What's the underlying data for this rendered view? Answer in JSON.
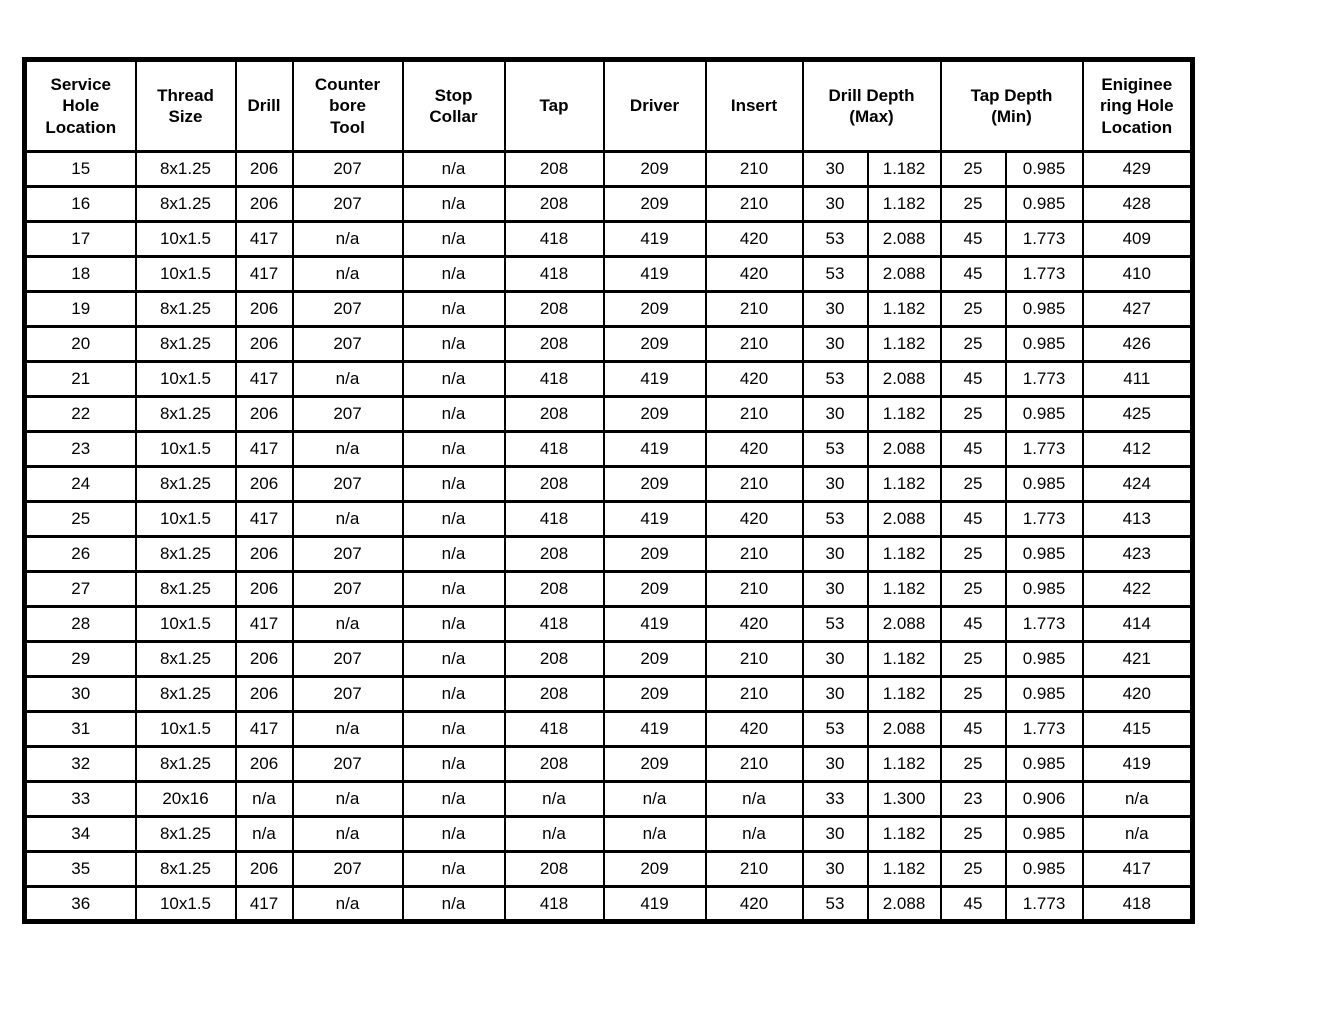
{
  "table": {
    "columns": [
      {
        "label": "Service\nHole\nLocation"
      },
      {
        "label": "Thread\nSize"
      },
      {
        "label": "Drill"
      },
      {
        "label": "Counter\nbore\nTool"
      },
      {
        "label": "Stop\nCollar"
      },
      {
        "label": "Tap"
      },
      {
        "label": "Driver"
      },
      {
        "label": "Insert"
      },
      {
        "label": "Drill Depth\n(Max)"
      },
      {
        "label": "Tap Depth\n(Min)"
      },
      {
        "label": "Eniginee\nring Hole\nLocation"
      }
    ],
    "rows": [
      [
        "15",
        "8x1.25",
        "206",
        "207",
        "n/a",
        "208",
        "209",
        "210",
        "30",
        "1.182",
        "25",
        "0.985",
        "429"
      ],
      [
        "16",
        "8x1.25",
        "206",
        "207",
        "n/a",
        "208",
        "209",
        "210",
        "30",
        "1.182",
        "25",
        "0.985",
        "428"
      ],
      [
        "17",
        "10x1.5",
        "417",
        "n/a",
        "n/a",
        "418",
        "419",
        "420",
        "53",
        "2.088",
        "45",
        "1.773",
        "409"
      ],
      [
        "18",
        "10x1.5",
        "417",
        "n/a",
        "n/a",
        "418",
        "419",
        "420",
        "53",
        "2.088",
        "45",
        "1.773",
        "410"
      ],
      [
        "19",
        "8x1.25",
        "206",
        "207",
        "n/a",
        "208",
        "209",
        "210",
        "30",
        "1.182",
        "25",
        "0.985",
        "427"
      ],
      [
        "20",
        "8x1.25",
        "206",
        "207",
        "n/a",
        "208",
        "209",
        "210",
        "30",
        "1.182",
        "25",
        "0.985",
        "426"
      ],
      [
        "21",
        "10x1.5",
        "417",
        "n/a",
        "n/a",
        "418",
        "419",
        "420",
        "53",
        "2.088",
        "45",
        "1.773",
        "411"
      ],
      [
        "22",
        "8x1.25",
        "206",
        "207",
        "n/a",
        "208",
        "209",
        "210",
        "30",
        "1.182",
        "25",
        "0.985",
        "425"
      ],
      [
        "23",
        "10x1.5",
        "417",
        "n/a",
        "n/a",
        "418",
        "419",
        "420",
        "53",
        "2.088",
        "45",
        "1.773",
        "412"
      ],
      [
        "24",
        "8x1.25",
        "206",
        "207",
        "n/a",
        "208",
        "209",
        "210",
        "30",
        "1.182",
        "25",
        "0.985",
        "424"
      ],
      [
        "25",
        "10x1.5",
        "417",
        "n/a",
        "n/a",
        "418",
        "419",
        "420",
        "53",
        "2.088",
        "45",
        "1.773",
        "413"
      ],
      [
        "26",
        "8x1.25",
        "206",
        "207",
        "n/a",
        "208",
        "209",
        "210",
        "30",
        "1.182",
        "25",
        "0.985",
        "423"
      ],
      [
        "27",
        "8x1.25",
        "206",
        "207",
        "n/a",
        "208",
        "209",
        "210",
        "30",
        "1.182",
        "25",
        "0.985",
        "422"
      ],
      [
        "28",
        "10x1.5",
        "417",
        "n/a",
        "n/a",
        "418",
        "419",
        "420",
        "53",
        "2.088",
        "45",
        "1.773",
        "414"
      ],
      [
        "29",
        "8x1.25",
        "206",
        "207",
        "n/a",
        "208",
        "209",
        "210",
        "30",
        "1.182",
        "25",
        "0.985",
        "421"
      ],
      [
        "30",
        "8x1.25",
        "206",
        "207",
        "n/a",
        "208",
        "209",
        "210",
        "30",
        "1.182",
        "25",
        "0.985",
        "420"
      ],
      [
        "31",
        "10x1.5",
        "417",
        "n/a",
        "n/a",
        "418",
        "419",
        "420",
        "53",
        "2.088",
        "45",
        "1.773",
        "415"
      ],
      [
        "32",
        "8x1.25",
        "206",
        "207",
        "n/a",
        "208",
        "209",
        "210",
        "30",
        "1.182",
        "25",
        "0.985",
        "419"
      ],
      [
        "33",
        "20x16",
        "n/a",
        "n/a",
        "n/a",
        "n/a",
        "n/a",
        "n/a",
        "33",
        "1.300",
        "23",
        "0.906",
        "n/a"
      ],
      [
        "34",
        "8x1.25",
        "n/a",
        "n/a",
        "n/a",
        "n/a",
        "n/a",
        "n/a",
        "30",
        "1.182",
        "25",
        "0.985",
        "n/a"
      ],
      [
        "35",
        "8x1.25",
        "206",
        "207",
        "n/a",
        "208",
        "209",
        "210",
        "30",
        "1.182",
        "25",
        "0.985",
        "417"
      ],
      [
        "36",
        "10x1.5",
        "417",
        "n/a",
        "n/a",
        "418",
        "419",
        "420",
        "53",
        "2.088",
        "45",
        "1.773",
        "418"
      ]
    ]
  },
  "colors": {
    "border": "#000000",
    "background": "#ffffff",
    "text": "#000000"
  }
}
